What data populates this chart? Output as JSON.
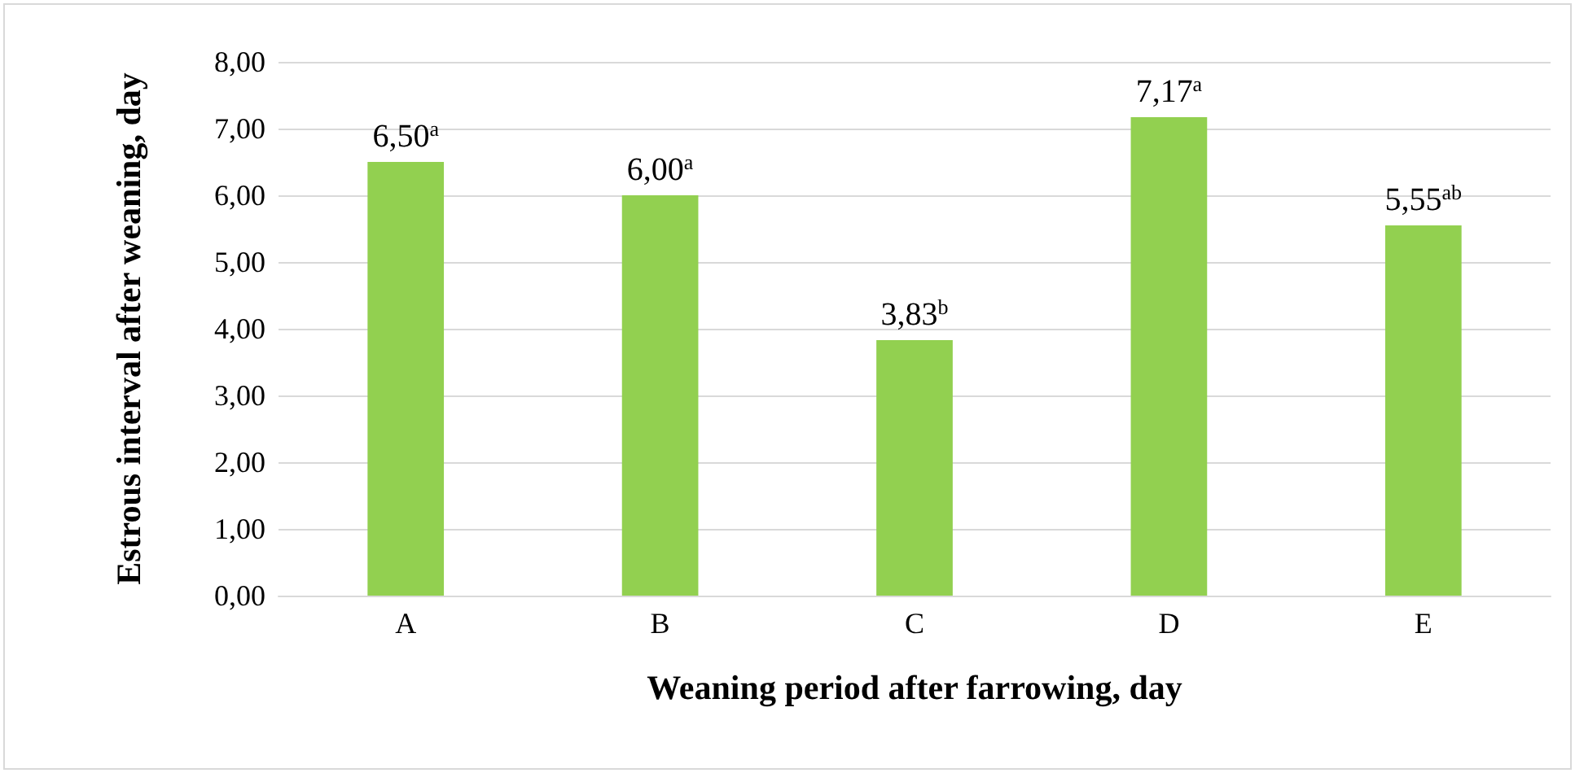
{
  "chart_data": {
    "type": "bar",
    "xlabel": "Weaning period after farrowing, day",
    "ylabel": "Estrous interval after weaning, day",
    "categories": [
      "A",
      "B",
      "C",
      "D",
      "E"
    ],
    "values": [
      6.5,
      6.0,
      3.83,
      7.17,
      5.55
    ],
    "value_labels": [
      "6,50$^{a}$",
      "6,00$^{a}$",
      "3,83$^{b}$",
      "7,17$^{a}$",
      "5,55$^{ab}$"
    ],
    "color": "#92d050",
    "ylim": [
      0,
      8
    ],
    "yticks": [
      {
        "value": 0,
        "label": "0,00"
      },
      {
        "value": 1,
        "label": "1,00"
      },
      {
        "value": 2,
        "label": "2,00"
      },
      {
        "value": 3,
        "label": "3,00"
      },
      {
        "value": 4,
        "label": "4,00"
      },
      {
        "value": 5,
        "label": "5,00"
      },
      {
        "value": 6,
        "label": "6,00"
      },
      {
        "value": 7,
        "label": "7,00"
      },
      {
        "value": 8,
        "label": "8,00"
      }
    ],
    "grid": "y"
  }
}
